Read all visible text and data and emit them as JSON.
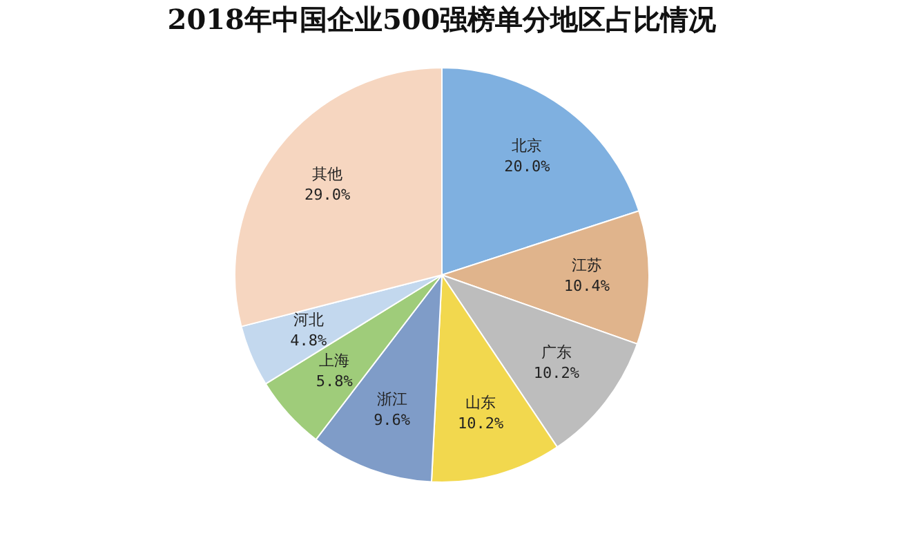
{
  "chart_data": {
    "type": "pie",
    "title": "2018年中国企业500强榜单分地区占比情况",
    "categories": [
      "北京",
      "江苏",
      "广东",
      "山东",
      "浙江",
      "上海",
      "河北",
      "其他"
    ],
    "values": [
      20.0,
      10.4,
      10.2,
      10.2,
      9.6,
      5.8,
      4.8,
      29.0
    ],
    "colors": [
      "#7fb0e0",
      "#e0b48c",
      "#bdbdbd",
      "#f2d84e",
      "#7f9cc8",
      "#9fcc7a",
      "#c3d8ee",
      "#f6d6c0"
    ],
    "value_labels": [
      "20.0%",
      "10.4%",
      "10.2%",
      "10.2%",
      "9.6%",
      "5.8%",
      "4.8%",
      "29.0%"
    ],
    "legend": false
  }
}
